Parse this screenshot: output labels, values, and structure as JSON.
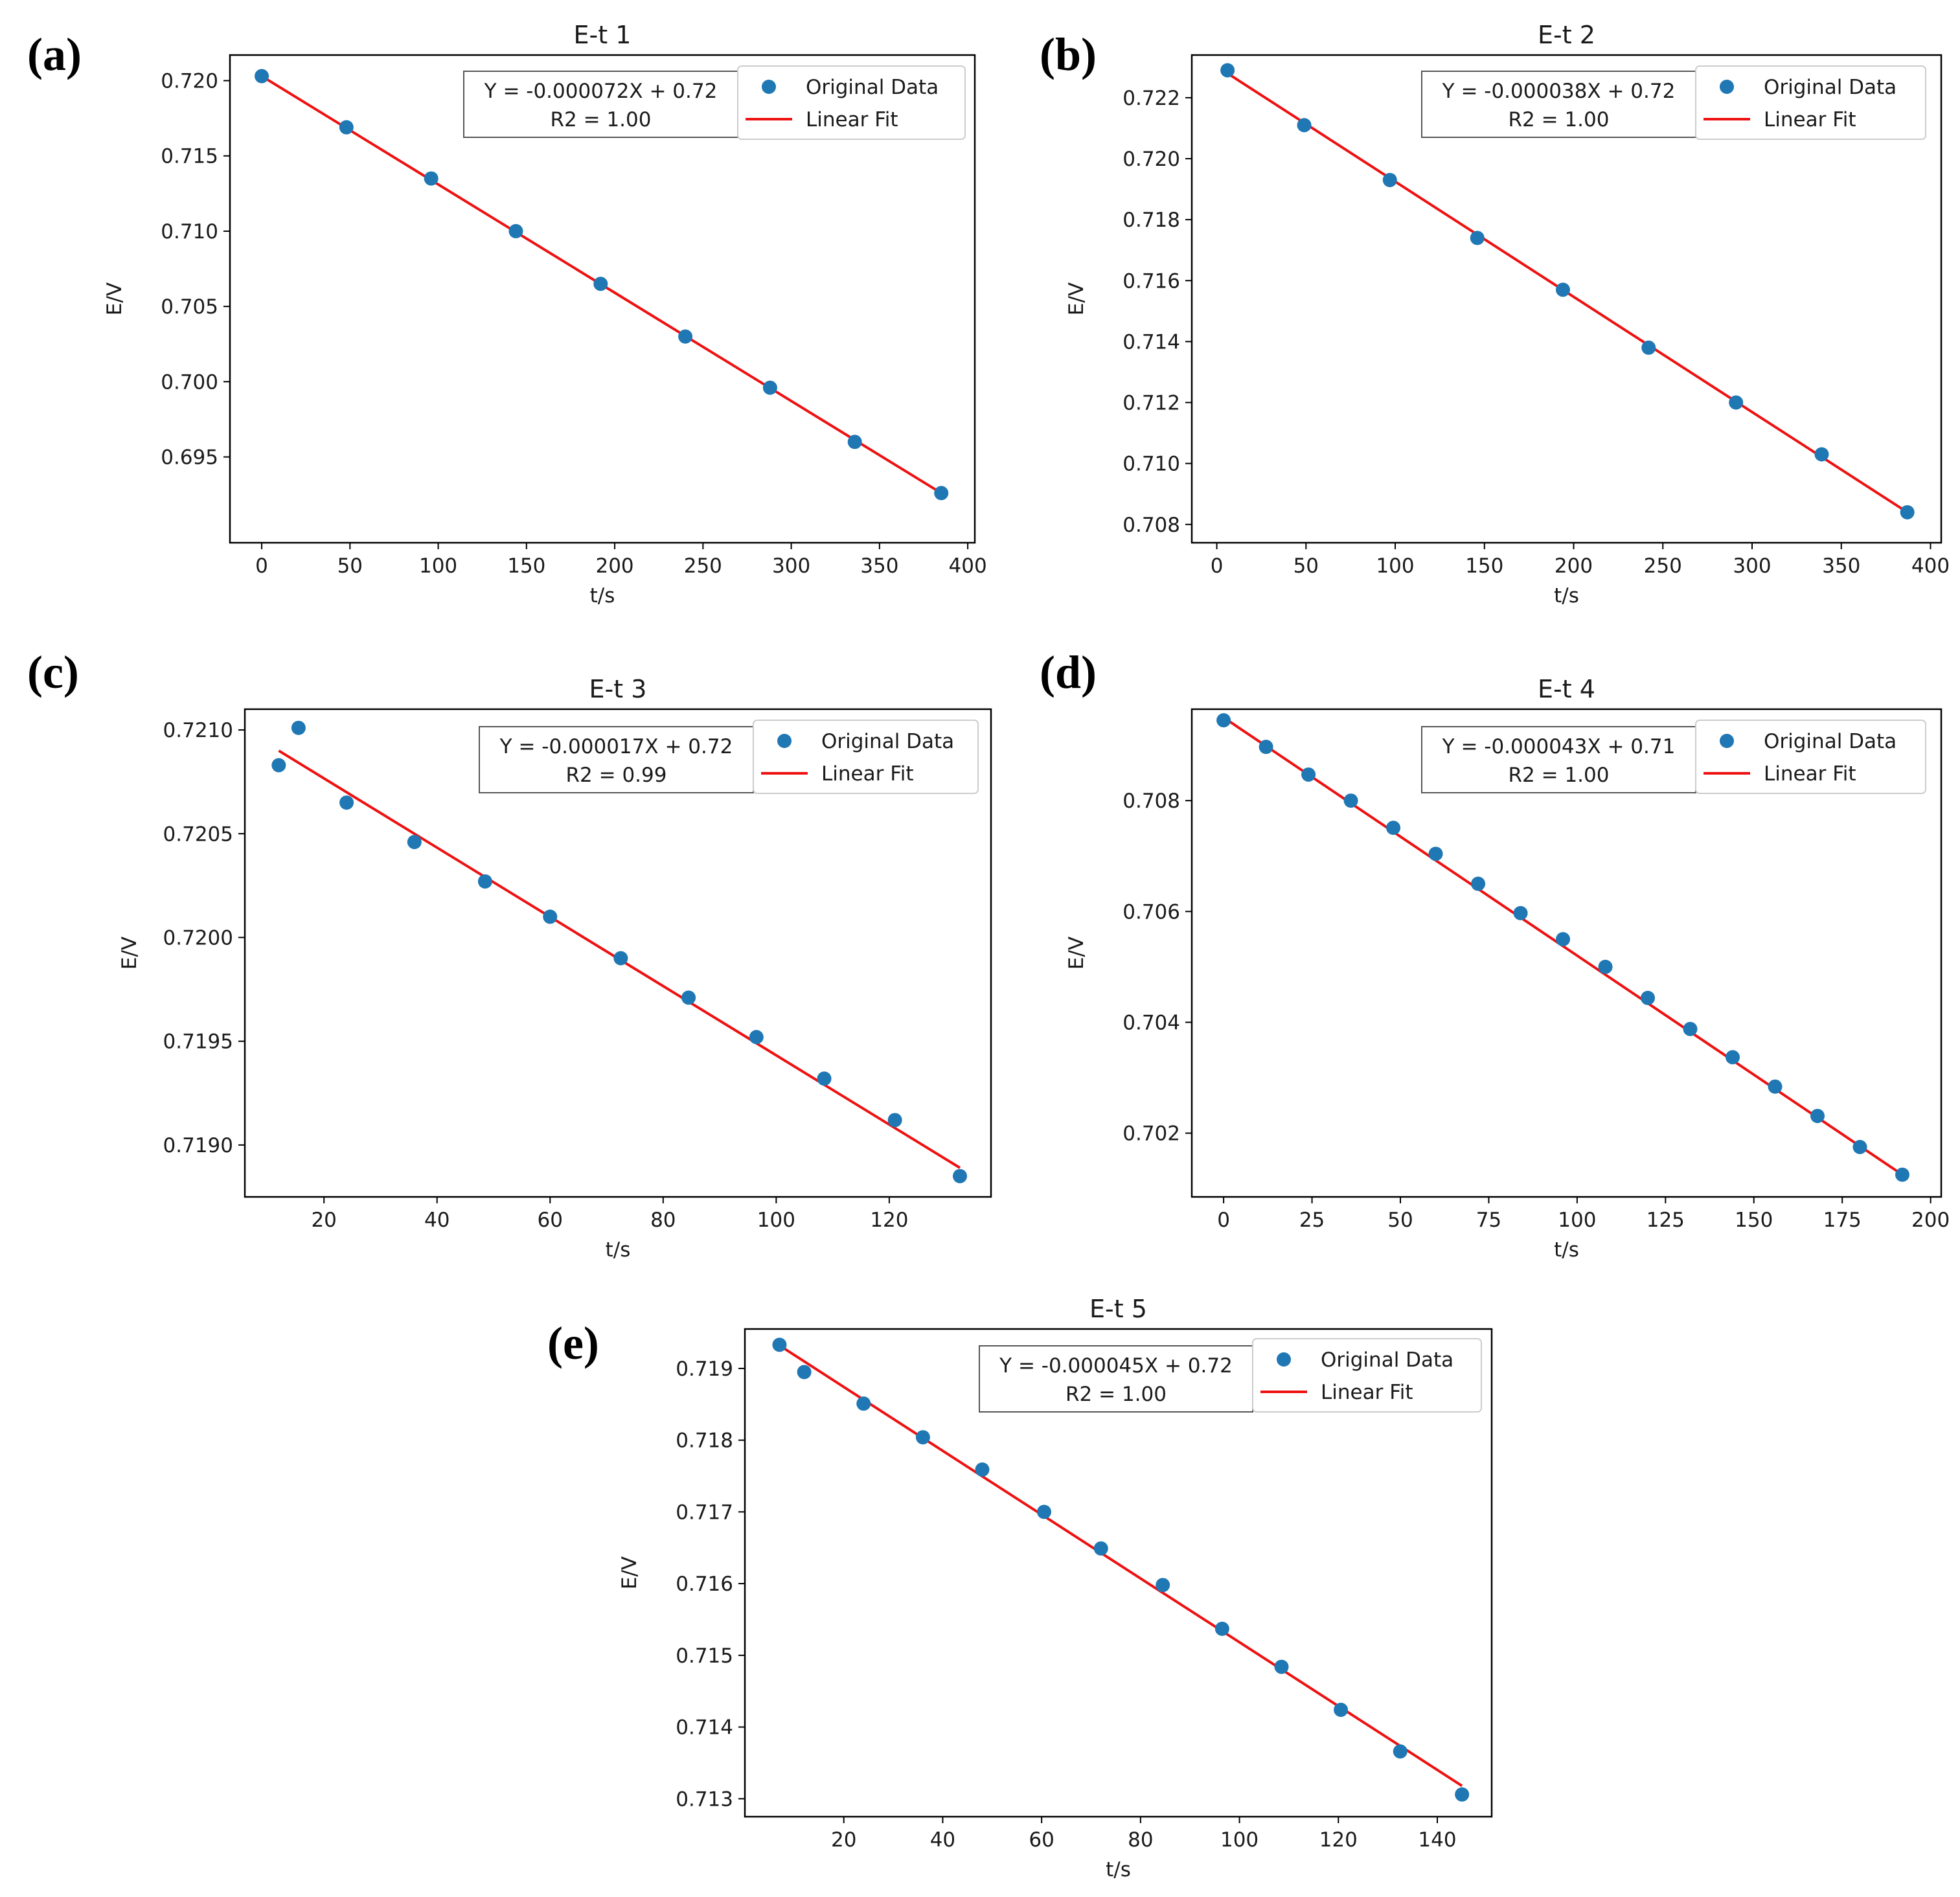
{
  "colors": {
    "data": "#1f77b4",
    "fit": "#ee1111",
    "axes": "#000000",
    "text": "#1a1a1a"
  },
  "legend": {
    "data_label": "Original Data",
    "fit_label": "Linear Fit"
  },
  "axis_labels": {
    "x": "t/s",
    "y": "E/V"
  },
  "chart_data": [
    {
      "panel": "(a)",
      "type": "scatter",
      "title": "E-t 1",
      "equation": "Y = -0.000072X + 0.72",
      "r2": "R2 = 1.00",
      "xlim": [
        -18,
        404
      ],
      "ylim": [
        0.6893,
        0.7217
      ],
      "xticks": [
        0,
        50,
        100,
        150,
        200,
        250,
        300,
        350,
        400
      ],
      "xticklabels": [
        "0",
        "50",
        "100",
        "150",
        "200",
        "250",
        "300",
        "350",
        "400"
      ],
      "yticks": [
        0.695,
        0.7,
        0.705,
        0.71,
        0.715,
        0.72
      ],
      "yticklabels": [
        "0.695",
        "0.700",
        "0.705",
        "0.710",
        "0.715",
        "0.720"
      ],
      "series": [
        {
          "name": "Original Data",
          "x": [
            0,
            48,
            96,
            144,
            192,
            240,
            288,
            336,
            385
          ],
          "y": [
            0.7203,
            0.7169,
            0.7135,
            0.71,
            0.7065,
            0.703,
            0.6996,
            0.696,
            0.6926
          ]
        },
        {
          "name": "Linear Fit",
          "x": [
            0,
            385
          ],
          "y": [
            0.7203,
            0.6926
          ]
        }
      ]
    },
    {
      "panel": "(b)",
      "type": "scatter",
      "title": "E-t 2",
      "equation": "Y = -0.000038X + 0.72",
      "r2": "R2 = 1.00",
      "xlim": [
        -14,
        406
      ],
      "ylim": [
        0.7074,
        0.7234
      ],
      "xticks": [
        0,
        50,
        100,
        150,
        200,
        250,
        300,
        350,
        400
      ],
      "xticklabels": [
        "0",
        "50",
        "100",
        "150",
        "200",
        "250",
        "300",
        "350",
        "400"
      ],
      "yticks": [
        0.708,
        0.71,
        0.712,
        0.714,
        0.716,
        0.718,
        0.72,
        0.722
      ],
      "yticklabels": [
        "0.708",
        "0.710",
        "0.712",
        "0.714",
        "0.716",
        "0.718",
        "0.720",
        "0.722"
      ],
      "series": [
        {
          "name": "Original Data",
          "x": [
            6,
            49,
            97,
            146,
            194,
            242,
            291,
            339,
            387
          ],
          "y": [
            0.7229,
            0.7211,
            0.7193,
            0.7174,
            0.7157,
            0.7138,
            0.712,
            0.7103,
            0.7084
          ]
        },
        {
          "name": "Linear Fit",
          "x": [
            6,
            387
          ],
          "y": [
            0.7228,
            0.7084
          ]
        }
      ]
    },
    {
      "panel": "(c)",
      "type": "scatter",
      "title": "E-t 3",
      "equation": "Y = -0.000017X + 0.72",
      "r2": "R2 = 0.99",
      "xlim": [
        6,
        138
      ],
      "ylim": [
        0.71875,
        0.7211
      ],
      "xticks": [
        20,
        40,
        60,
        80,
        100,
        120
      ],
      "xticklabels": [
        "20",
        "40",
        "60",
        "80",
        "100",
        "120"
      ],
      "yticks": [
        0.719,
        0.7195,
        0.72,
        0.7205,
        0.721
      ],
      "yticklabels": [
        "0.7190",
        "0.7195",
        "0.7200",
        "0.7205",
        "0.7210"
      ],
      "series": [
        {
          "name": "Original Data",
          "x": [
            12,
            15.5,
            24,
            36,
            48.5,
            60,
            72.5,
            84.5,
            96.5,
            108.5,
            121,
            132.5
          ],
          "y": [
            0.72083,
            0.72101,
            0.72065,
            0.72046,
            0.72027,
            0.7201,
            0.7199,
            0.71971,
            0.71952,
            0.71932,
            0.71912,
            0.71885
          ]
        },
        {
          "name": "Linear Fit",
          "x": [
            12,
            132.5
          ],
          "y": [
            0.7209,
            0.71889
          ]
        }
      ]
    },
    {
      "panel": "(d)",
      "type": "scatter",
      "title": "E-t 4",
      "equation": "Y = -0.000043X + 0.71",
      "r2": "R2 = 1.00",
      "xlim": [
        -9,
        203
      ],
      "ylim": [
        0.70085,
        0.70965
      ],
      "xticks": [
        0,
        25,
        50,
        75,
        100,
        125,
        150,
        175,
        200
      ],
      "xticklabels": [
        "0",
        "25",
        "50",
        "75",
        "100",
        "125",
        "150",
        "175",
        "200"
      ],
      "yticks": [
        0.702,
        0.704,
        0.706,
        0.708
      ],
      "yticklabels": [
        "0.702",
        "0.704",
        "0.706",
        "0.708"
      ],
      "series": [
        {
          "name": "Original Data",
          "x": [
            0,
            12,
            24,
            36,
            48,
            60,
            72,
            84,
            96,
            108,
            120,
            132,
            144,
            156,
            168,
            180,
            192
          ],
          "y": [
            0.70945,
            0.70897,
            0.70847,
            0.708,
            0.70751,
            0.70704,
            0.7065,
            0.70597,
            0.7055,
            0.705,
            0.70444,
            0.70388,
            0.70337,
            0.70284,
            0.70231,
            0.70175,
            0.70125
          ]
        },
        {
          "name": "Linear Fit",
          "x": [
            0,
            192
          ],
          "y": [
            0.7095,
            0.70125
          ]
        }
      ]
    },
    {
      "panel": "(e)",
      "type": "scatter",
      "title": "E-t 5",
      "equation": "Y = -0.000045X + 0.72",
      "r2": "R2 = 1.00",
      "xlim": [
        0,
        151
      ],
      "ylim": [
        0.71275,
        0.71955
      ],
      "xticks": [
        20,
        40,
        60,
        80,
        100,
        120,
        140
      ],
      "xticklabels": [
        "20",
        "40",
        "60",
        "80",
        "100",
        "120",
        "140"
      ],
      "yticks": [
        0.713,
        0.714,
        0.715,
        0.716,
        0.717,
        0.718,
        0.719
      ],
      "yticklabels": [
        "0.713",
        "0.714",
        "0.715",
        "0.716",
        "0.717",
        "0.718",
        "0.719"
      ],
      "series": [
        {
          "name": "Original Data",
          "x": [
            7,
            12,
            24,
            36,
            48,
            60.5,
            72,
            84.5,
            96.5,
            108.5,
            120.5,
            132.5,
            145
          ],
          "y": [
            0.71933,
            0.71895,
            0.71851,
            0.71804,
            0.71759,
            0.717,
            0.71649,
            0.71598,
            0.71537,
            0.71484,
            0.71424,
            0.71366,
            0.71306
          ]
        },
        {
          "name": "Linear Fit",
          "x": [
            7,
            145
          ],
          "y": [
            0.71932,
            0.71318
          ]
        }
      ]
    }
  ]
}
